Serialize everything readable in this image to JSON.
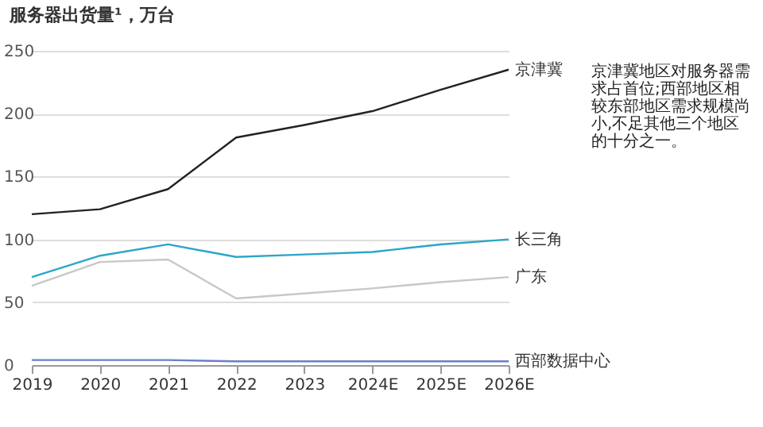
{
  "chart_data": {
    "type": "line",
    "title": "服务器出货量¹，万台",
    "categories": [
      "2019",
      "2020",
      "2021",
      "2022",
      "2023",
      "2024E",
      "2025E",
      "2026E"
    ],
    "series": [
      {
        "name": "京津冀",
        "color": "#222222",
        "values": [
          120,
          124,
          140,
          181,
          191,
          202,
          219,
          235
        ]
      },
      {
        "name": "长三角",
        "color": "#2aa6c8",
        "values": [
          70,
          87,
          96,
          86,
          88,
          90,
          96,
          100
        ]
      },
      {
        "name": "广东",
        "color": "#c8c8c8",
        "values": [
          63,
          82,
          84,
          53,
          57,
          61,
          66,
          70
        ]
      },
      {
        "name": "西部数据中心",
        "color": "#6b7fc8",
        "values": [
          4,
          4,
          4,
          3,
          3,
          3,
          3,
          3
        ]
      }
    ],
    "ylim": [
      0,
      250
    ],
    "yticks": [
      0,
      50,
      100,
      150,
      200,
      250
    ],
    "grid": "y",
    "marker": "none",
    "line_style": "solid",
    "annotations": [
      "京津冀地区对服务器需求占首位;西部地区相较东部地区需求规模尚小,不足其他三个地区的十分之一。"
    ]
  }
}
